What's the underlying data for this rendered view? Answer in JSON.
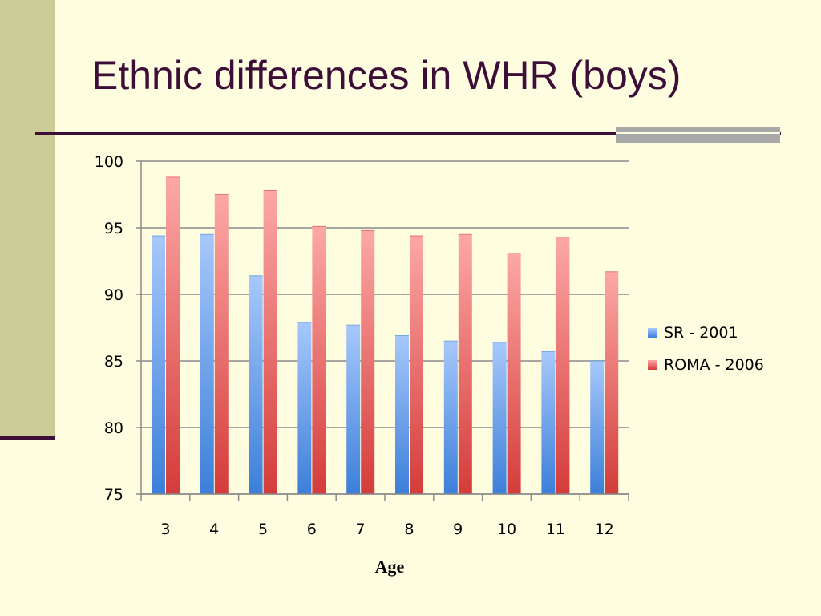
{
  "slide": {
    "title": "Ethnic differences in WHR (boys)"
  },
  "chart_data": {
    "type": "bar",
    "title": "",
    "xlabel": "Age",
    "ylabel": "",
    "categories": [
      "3",
      "4",
      "5",
      "6",
      "7",
      "8",
      "9",
      "10",
      "11",
      "12"
    ],
    "series": [
      {
        "name": "SR - 2001",
        "values": [
          94.4,
          94.5,
          91.4,
          87.9,
          87.7,
          86.9,
          86.5,
          86.4,
          85.7,
          85.0
        ],
        "color_light": "#a7c8fb",
        "color_dark": "#3c7fd9"
      },
      {
        "name": "ROMA - 2006",
        "values": [
          98.8,
          97.5,
          97.8,
          95.1,
          94.8,
          94.4,
          94.5,
          93.1,
          94.3,
          91.7
        ],
        "color_light": "#fca8a6",
        "color_dark": "#d43c3a"
      }
    ],
    "ylim": [
      75,
      100
    ],
    "yticks": [
      75,
      80,
      85,
      90,
      95,
      100
    ],
    "grid": true,
    "legend": "right"
  }
}
